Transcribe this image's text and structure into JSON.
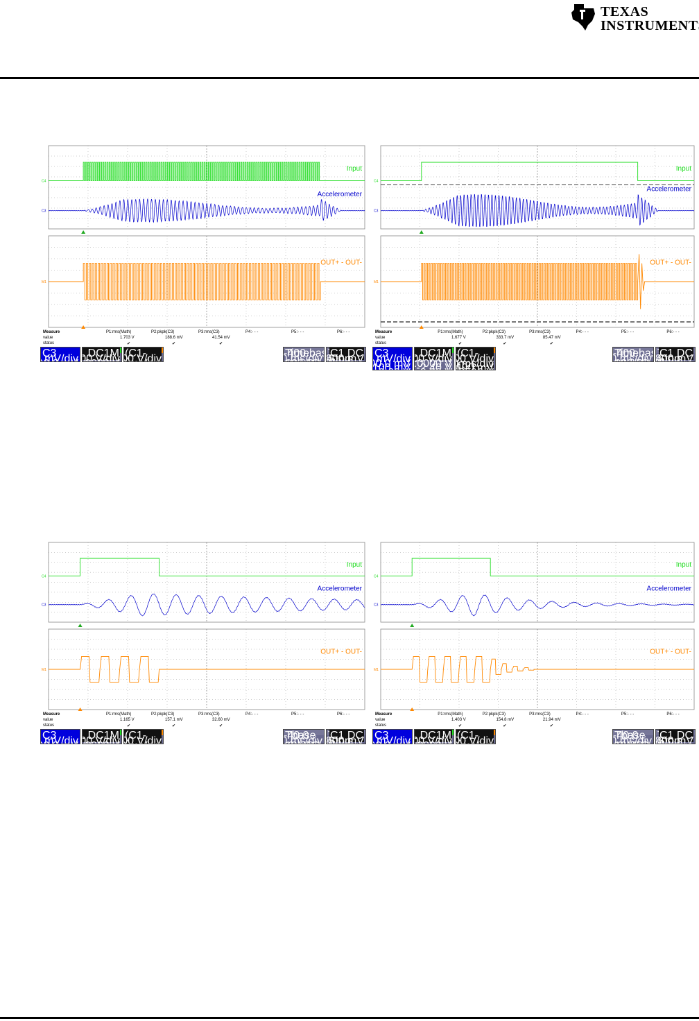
{
  "brand": {
    "line1": "TEXAS",
    "line2": "INSTRUMENTS"
  },
  "colors": {
    "input": "#22dd22",
    "accel": "#0000cc",
    "out": "#ff8800",
    "grid": "#999999"
  },
  "chart_data": [
    {
      "type": "line",
      "labels": {
        "input": "Input",
        "accel": "Accelerometer",
        "out": "OUT+ - OUT-"
      },
      "markers": {
        "c4": "C4",
        "c3": "C3",
        "m1": "M1"
      },
      "signals": {
        "input_on": [
          0.11,
          0.86
        ],
        "accel_decay": 0.3,
        "accel_periods": 80,
        "out_periods": 80,
        "out_ringing": false
      },
      "measure": {
        "header": "Measure",
        "value_label": "value",
        "status_label": "status",
        "params": [
          "P1:rms(Math)",
          "P2:pkpk(C3)",
          "P3:rms(C3)",
          "P4:- - -",
          "P5:- - -",
          "P6:- - -"
        ],
        "values": [
          "1.703 V",
          "188.6 mV",
          "41.54 mV",
          "",
          "",
          ""
        ],
        "status": [
          "✔",
          "✔",
          "✔",
          "",
          "",
          ""
        ]
      },
      "boxes": {
        "c3": {
          "title": "C3",
          "rows": [
            [
              "",
              "100 mV/div"
            ],
            [
              "",
              "200.0 mV"
            ]
          ]
        },
        "c4": {
          "title": "C4",
          "tag": "F DBwL DC1M",
          "rows": [
            [
              "",
              "2.00 V/div"
            ],
            [
              "",
              "2.0000 V"
            ]
          ]
        },
        "math": {
          "title": "Math",
          "tag": "(C1-C2)",
          "rows": [
            [
              "",
              "2.00 V/div"
            ],
            [
              "",
              "100 ms/div"
            ]
          ]
        },
        "timebase": {
          "title": "Timebase",
          "value": "-400 ms",
          "rows": [
            [
              "",
              "100 ms/div"
            ],
            [
              "100 kS",
              "100 kS/s"
            ]
          ]
        },
        "trigger": {
          "title": "Trigger",
          "tag": "C1 DC",
          "rows": [
            [
              "Stop",
              "800 mV"
            ],
            [
              "Edge",
              "Positive"
            ]
          ]
        }
      }
    },
    {
      "type": "line",
      "labels": {
        "input": "Input",
        "accel": "Accelerometer",
        "out": "OUT+ - OUT-"
      },
      "markers": {
        "c4": "C4",
        "c3": "C3",
        "m1": "M1"
      },
      "signals": {
        "input_on": [
          0.13,
          0.82
        ],
        "accel_decay": 1.0,
        "accel_periods": 90,
        "out_periods": 90,
        "out_ringing": true
      },
      "measure": {
        "header": "Measure",
        "value_label": "value",
        "status_label": "status",
        "params": [
          "P1:rms(Math)",
          "P2:pkpk(C3)",
          "P3:rms(C3)",
          "P4:- - -",
          "P5:- - -",
          "P6:- - -"
        ],
        "values": [
          "1.677 V",
          "333.7 mV",
          "85.47 mV",
          "",
          "",
          ""
        ],
        "status": [
          "✔",
          "✔",
          "✔",
          "",
          "",
          ""
        ]
      },
      "boxes": {
        "c3": {
          "title": "C3",
          "rows": [
            [
              "",
              "100 mV/div"
            ],
            [
              "",
              "200.0 mV"
            ],
            [
              "",
              "100 mV"
            ],
            [
              "",
              "-9.60 V"
            ],
            [
              "",
              "-9.60 V"
            ],
            [
              "Δy",
              "-6.66 V"
            ]
          ]
        },
        "c4": {
          "title": "C4",
          "tag": "F DBwL DC1M",
          "rows": [
            [
              "",
              "2.00 V/div"
            ],
            [
              "",
              "2.0000 V"
            ],
            [
              "",
              "-2.40 V"
            ],
            [
              "",
              "-8.90 V"
            ],
            [
              "Δy",
              "-6.66 V"
            ]
          ]
        },
        "math": {
          "title": "Math",
          "tag": "(C1-C2)",
          "rows": [
            [
              "",
              "2.00 V/div"
            ],
            [
              "",
              "100 ms/div"
            ],
            [
              "",
              "-400 mV"
            ],
            [
              "",
              "-6.96 V"
            ],
            [
              "Δy",
              "-6.56 V"
            ]
          ]
        },
        "timebase": {
          "title": "Timebase",
          "value": "-400 ms",
          "rows": [
            [
              "",
              "100 ms/div"
            ],
            [
              "100 kS",
              "100 kS/s"
            ]
          ]
        },
        "trigger": {
          "title": "Trigger",
          "tag": "C1 DC",
          "rows": [
            [
              "Stop",
              "800 mV"
            ],
            [
              "Edge",
              "Positive"
            ]
          ]
        }
      }
    },
    {
      "type": "line",
      "labels": {
        "input": "Input",
        "accel": "Accelerometer",
        "out": "OUT+ - OUT-"
      },
      "markers": {
        "c4": "C4",
        "c3": "C3",
        "m1": "M1"
      },
      "signals": {
        "input_on": [
          0.1,
          0.35
        ],
        "accel_decay": 0.2,
        "accel_periods": 14,
        "out_pulses": 4,
        "out_ringing": false
      },
      "measure": {
        "header": "Measure",
        "value_label": "value",
        "status_label": "status",
        "params": [
          "P1:rms(Math)",
          "P2:pkpk(C3)",
          "P3:rms(C3)",
          "P4:- - -",
          "P5:- - -",
          "P6:- - -"
        ],
        "values": [
          "1.165 V",
          "157.1 mV",
          "32.60 mV",
          "",
          "",
          ""
        ],
        "status": [
          "✔",
          "✔",
          "✔",
          "",
          "",
          ""
        ]
      },
      "boxes": {
        "c3": {
          "title": "C3",
          "rows": [
            [
              "",
              "100 mV/div"
            ],
            [
              "",
              "200.0 mV"
            ]
          ]
        },
        "c4": {
          "title": "C4",
          "tag": "F DBwL DC1M",
          "rows": [
            [
              "",
              "2.00 V/div"
            ],
            [
              "",
              "2.0000 V"
            ]
          ]
        },
        "math": {
          "title": "Math",
          "tag": "(C1-C2)",
          "rows": [
            [
              "",
              "2.00 V/div"
            ],
            [
              "",
              "10.0 ms/div"
            ]
          ]
        },
        "timebase": {
          "title": "Tbase",
          "value": "-40.0 ms",
          "rows": [
            [
              "",
              "10.0 ms/div"
            ],
            [
              "100 kS",
              "1.0 MS/s"
            ]
          ]
        },
        "trigger": {
          "title": "Trigger",
          "tag": "C1 DC",
          "rows": [
            [
              "Stop",
              "800 mV"
            ],
            [
              "Edge",
              "Positive"
            ]
          ]
        }
      }
    },
    {
      "type": "line",
      "labels": {
        "input": "Input",
        "accel": "Accelerometer",
        "out": "OUT+ - OUT-"
      },
      "markers": {
        "c4": "C4",
        "c3": "C3",
        "m1": "M1"
      },
      "signals": {
        "input_on": [
          0.1,
          0.35
        ],
        "accel_decay": 0.2,
        "accel_periods": 14,
        "out_pulses": 5,
        "out_ringing": true
      },
      "measure": {
        "header": "Measure",
        "value_label": "value",
        "status_label": "status",
        "params": [
          "P1:rms(Math)",
          "P2:pkpk(C3)",
          "P3:rms(C3)",
          "P4:- - -",
          "P5:- - -",
          "P6:- - -"
        ],
        "values": [
          "1.403 V",
          "154.8 mV",
          "21.94 mV",
          "",
          "",
          ""
        ],
        "status": [
          "✔",
          "✔",
          "✔",
          "",
          "",
          ""
        ]
      },
      "boxes": {
        "c3": {
          "title": "C3",
          "rows": [
            [
              "",
              "100 mV/div"
            ],
            [
              "",
              "200.0 mV"
            ]
          ]
        },
        "c4": {
          "title": "C4",
          "tag": "F DBwL DC1M",
          "rows": [
            [
              "",
              "2.00 V/div"
            ],
            [
              "",
              "2.0000 V"
            ]
          ]
        },
        "math": {
          "title": "Math",
          "tag": "(C1-C2)",
          "rows": [
            [
              "",
              "2.00 V/div"
            ],
            [
              "",
              "10.0 ms/div"
            ]
          ]
        },
        "timebase": {
          "title": "Tbase",
          "value": "-40.0 ms",
          "rows": [
            [
              "",
              "10.0 ms/div"
            ],
            [
              "100 kS",
              "1.0 MS/s"
            ]
          ]
        },
        "trigger": {
          "title": "Trigger",
          "tag": "C1 DC",
          "rows": [
            [
              "Stop",
              "800 mV"
            ],
            [
              "Edge",
              "Positive"
            ]
          ]
        }
      }
    }
  ]
}
